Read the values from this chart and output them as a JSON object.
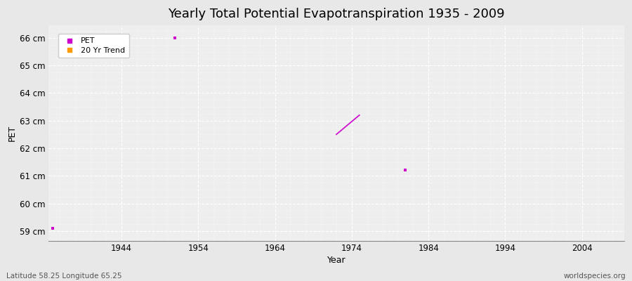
{
  "title": "Yearly Total Potential Evapotranspiration 1935 - 2009",
  "xlabel": "Year",
  "ylabel": "PET",
  "xlim": [
    1934.5,
    2009.5
  ],
  "ylim": [
    58.65,
    66.45
  ],
  "yticks": [
    59,
    60,
    61,
    62,
    63,
    64,
    65,
    66
  ],
  "ytick_labels": [
    "59 cm",
    "60 cm",
    "61 cm",
    "62 cm",
    "63 cm",
    "64 cm",
    "65 cm",
    "66 cm"
  ],
  "xticks": [
    1944,
    1954,
    1964,
    1974,
    1984,
    1994,
    2004
  ],
  "outer_bg_color": "#e8e8e8",
  "plot_bg_color": "#eeeeee",
  "grid_color": "#ffffff",
  "pet_color": "#cc00cc",
  "trend_color": "#ff9900",
  "pet_points": [
    [
      1935,
      59.1
    ],
    [
      1951,
      66.0
    ],
    [
      1981,
      61.2
    ]
  ],
  "trend_line": [
    [
      1972,
      62.5
    ],
    [
      1975,
      63.2
    ]
  ],
  "footer_left": "Latitude 58.25 Longitude 65.25",
  "footer_right": "worldspecies.org",
  "legend_pet_label": "PET",
  "legend_trend_label": "20 Yr Trend",
  "title_fontsize": 13,
  "axis_label_fontsize": 9,
  "tick_fontsize": 8.5,
  "footer_fontsize": 7.5
}
